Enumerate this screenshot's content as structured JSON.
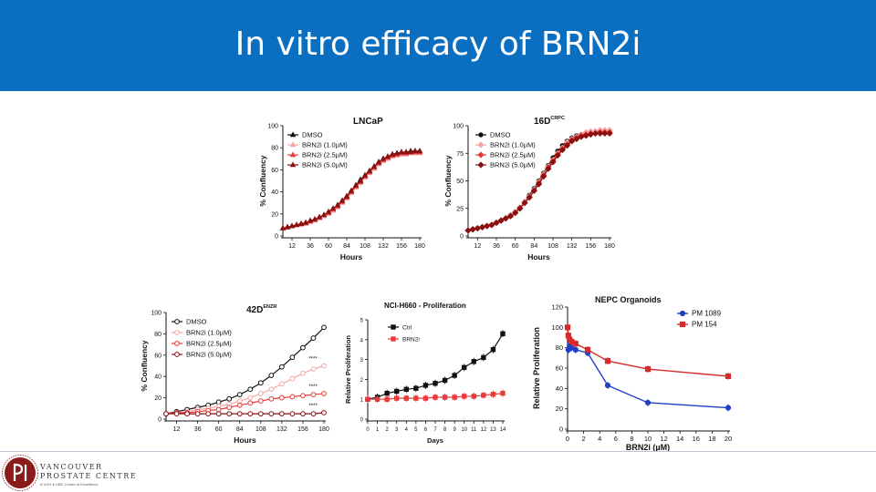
{
  "slide": {
    "title": "In vitro efficacy of BRN2i"
  },
  "logo": {
    "line1": "VANCOUVER",
    "line2": "PROSTATE CENTRE",
    "line3": "A VGH & UBC Centre of Excellence"
  },
  "chart_data": [
    {
      "id": "lncap",
      "type": "line",
      "title": "LNCaP",
      "title_sup": "",
      "xlabel": "Hours",
      "ylabel": "% Confluency",
      "xlim": [
        0,
        180
      ],
      "ylim": [
        0,
        100
      ],
      "xticks": [
        12,
        36,
        60,
        84,
        108,
        132,
        156,
        180
      ],
      "yticks": [
        0,
        20,
        40,
        60,
        80,
        100
      ],
      "legend_position": "top-left",
      "x": [
        0,
        6,
        12,
        18,
        24,
        30,
        36,
        42,
        48,
        54,
        60,
        66,
        72,
        78,
        84,
        90,
        96,
        102,
        108,
        114,
        120,
        126,
        132,
        138,
        144,
        150,
        156,
        162,
        168,
        174,
        180
      ],
      "series": [
        {
          "name": "DMSO",
          "color": "#111111",
          "marker": "triangle-up",
          "fill": true,
          "values": [
            7,
            8,
            9,
            10,
            11,
            12,
            13,
            15,
            17,
            19,
            21,
            24,
            28,
            32,
            36,
            41,
            46,
            51,
            55,
            59,
            63,
            67,
            70,
            72,
            74,
            75,
            76,
            76,
            77,
            77,
            77
          ]
        },
        {
          "name": "BRN2i (1.0µM)",
          "color": "#f2a7a7",
          "marker": "triangle-up",
          "fill": true,
          "values": [
            7,
            8,
            9,
            10,
            10,
            11,
            13,
            14,
            16,
            18,
            20,
            23,
            26,
            30,
            34,
            39,
            44,
            48,
            53,
            57,
            61,
            65,
            68,
            70,
            72,
            73,
            74,
            74,
            75,
            75,
            75
          ]
        },
        {
          "name": "BRN2i (2.5µM)",
          "color": "#e83a3a",
          "marker": "triangle-up",
          "fill": true,
          "values": [
            7,
            8,
            9,
            10,
            11,
            12,
            13,
            15,
            17,
            19,
            21,
            24,
            27,
            31,
            35,
            40,
            45,
            49,
            54,
            58,
            62,
            66,
            69,
            71,
            73,
            74,
            75,
            75,
            76,
            76,
            76
          ]
        },
        {
          "name": "BRN2i (5.0µM)",
          "color": "#8b1010",
          "marker": "triangle-up",
          "fill": true,
          "values": [
            7,
            8,
            9,
            10,
            11,
            12,
            14,
            15,
            17,
            19,
            22,
            25,
            28,
            32,
            36,
            41,
            46,
            50,
            55,
            59,
            63,
            67,
            70,
            72,
            74,
            75,
            76,
            76,
            76,
            77,
            77
          ]
        }
      ]
    },
    {
      "id": "16d",
      "type": "line",
      "title": "16D",
      "title_sup": "CRPC",
      "xlabel": "Hours",
      "ylabel": "% Confluency",
      "xlim": [
        0,
        180
      ],
      "ylim": [
        0,
        100
      ],
      "xticks": [
        12,
        36,
        60,
        84,
        108,
        132,
        156,
        180
      ],
      "yticks": [
        0,
        25,
        50,
        75,
        100
      ],
      "legend_position": "top-left",
      "x": [
        0,
        6,
        12,
        18,
        24,
        30,
        36,
        42,
        48,
        54,
        60,
        66,
        72,
        78,
        84,
        90,
        96,
        102,
        108,
        114,
        120,
        126,
        132,
        138,
        144,
        150,
        156,
        162,
        168,
        174,
        180
      ],
      "series": [
        {
          "name": "DMSO",
          "color": "#111111",
          "marker": "circle",
          "fill": true,
          "values": [
            5,
            6,
            7,
            8,
            9,
            10,
            12,
            14,
            16,
            19,
            22,
            26,
            31,
            37,
            43,
            50,
            57,
            64,
            71,
            77,
            82,
            86,
            89,
            91,
            92,
            93,
            93,
            94,
            94,
            94,
            94
          ]
        },
        {
          "name": "BRN2i (1.0µM)",
          "color": "#f2a7a7",
          "marker": "diamond",
          "fill": true,
          "values": [
            5,
            6,
            7,
            8,
            9,
            10,
            12,
            14,
            16,
            19,
            22,
            26,
            31,
            36,
            42,
            49,
            56,
            63,
            69,
            75,
            80,
            85,
            88,
            90,
            92,
            94,
            95,
            95,
            96,
            96,
            96
          ]
        },
        {
          "name": "BRN2i (2.5µM)",
          "color": "#e83a3a",
          "marker": "diamond",
          "fill": true,
          "values": [
            5,
            6,
            7,
            8,
            9,
            10,
            12,
            14,
            16,
            18,
            21,
            25,
            30,
            35,
            41,
            48,
            55,
            62,
            68,
            74,
            79,
            83,
            87,
            89,
            91,
            92,
            93,
            93,
            94,
            94,
            94
          ]
        },
        {
          "name": "BRN2i (5.0µM)",
          "color": "#8b1010",
          "marker": "diamond",
          "fill": true,
          "values": [
            5,
            6,
            7,
            8,
            9,
            10,
            12,
            14,
            16,
            18,
            21,
            25,
            30,
            35,
            41,
            47,
            54,
            61,
            67,
            73,
            78,
            82,
            86,
            88,
            90,
            91,
            92,
            93,
            93,
            93,
            93
          ]
        }
      ]
    },
    {
      "id": "42d",
      "type": "line",
      "title": "42D",
      "title_sup": "ENZR",
      "xlabel": "Hours",
      "ylabel": "% Confluency",
      "xlim": [
        0,
        180
      ],
      "ylim": [
        0,
        100
      ],
      "xticks": [
        12,
        36,
        60,
        84,
        108,
        132,
        156,
        180
      ],
      "yticks": [
        0,
        20,
        40,
        60,
        80,
        100
      ],
      "legend_position": "top-left",
      "annotations": [
        "****",
        "****",
        "****"
      ],
      "x": [
        0,
        12,
        24,
        36,
        48,
        60,
        72,
        84,
        96,
        108,
        120,
        132,
        144,
        156,
        168,
        180
      ],
      "series": [
        {
          "name": "DMSO",
          "color": "#111111",
          "marker": "circle",
          "fill": false,
          "values": [
            5,
            7,
            9,
            11,
            13,
            16,
            19,
            23,
            28,
            34,
            41,
            49,
            58,
            67,
            76,
            86
          ]
        },
        {
          "name": "BRN2i (1.0µM)",
          "color": "#f2a7a7",
          "marker": "circle",
          "fill": false,
          "values": [
            5,
            6,
            7,
            9,
            10,
            12,
            14,
            17,
            20,
            24,
            28,
            33,
            38,
            43,
            47,
            50
          ]
        },
        {
          "name": "BRN2i (2.5µM)",
          "color": "#e83a3a",
          "marker": "circle",
          "fill": false,
          "values": [
            5,
            6,
            6,
            7,
            8,
            9,
            11,
            13,
            15,
            17,
            19,
            20,
            21,
            22,
            23,
            24
          ]
        },
        {
          "name": "BRN2i (5.0µM)",
          "color": "#8b1010",
          "marker": "circle",
          "fill": false,
          "values": [
            5,
            5,
            5,
            5,
            5,
            5,
            5,
            5,
            5,
            5,
            5,
            5,
            5,
            5,
            5,
            6
          ]
        }
      ]
    },
    {
      "id": "nci",
      "type": "line",
      "title": "NCI-H660 - Proliferation",
      "title_sup": "",
      "xlabel": "Days",
      "ylabel": "Relative Proliferation",
      "xlim": [
        0,
        14
      ],
      "ylim": [
        0,
        5
      ],
      "xticks": [
        0,
        1,
        2,
        3,
        4,
        5,
        6,
        7,
        8,
        9,
        10,
        11,
        12,
        13,
        14
      ],
      "yticks": [
        0,
        1,
        2,
        3,
        4,
        5
      ],
      "legend_position": "top-left",
      "x": [
        0,
        1,
        2,
        3,
        4,
        5,
        6,
        7,
        8,
        9,
        10,
        11,
        12,
        13,
        14
      ],
      "series": [
        {
          "name": "Ctrl",
          "color": "#111111",
          "marker": "square",
          "fill": true,
          "values": [
            1.0,
            1.1,
            1.3,
            1.4,
            1.5,
            1.55,
            1.7,
            1.8,
            1.95,
            2.2,
            2.6,
            2.9,
            3.1,
            3.5,
            4.3
          ]
        },
        {
          "name": "BRN2i",
          "color": "#e83a3a",
          "marker": "square",
          "fill": true,
          "values": [
            1.0,
            1.0,
            1.0,
            1.05,
            1.05,
            1.05,
            1.05,
            1.1,
            1.1,
            1.1,
            1.15,
            1.15,
            1.2,
            1.25,
            1.3
          ]
        }
      ]
    },
    {
      "id": "nepc",
      "type": "line",
      "title": "NEPC Organoids",
      "title_sup": "",
      "xlabel": "BRN2i (µM)",
      "ylabel": "Relative Proliferation",
      "xlim": [
        0,
        20
      ],
      "ylim": [
        0,
        120
      ],
      "xticks": [
        0,
        2,
        4,
        6,
        8,
        10,
        12,
        14,
        16,
        18,
        20
      ],
      "yticks": [
        0,
        20,
        40,
        60,
        80,
        100,
        120
      ],
      "legend_position": "top-right",
      "x": [
        0,
        0.1,
        0.25,
        0.5,
        1,
        2.5,
        5,
        10,
        20
      ],
      "series": [
        {
          "name": "PM 1089",
          "color": "#1f3fc8",
          "marker": "circle",
          "fill": true,
          "values": [
            100,
            78,
            82,
            80,
            78,
            75,
            43,
            26,
            21
          ]
        },
        {
          "name": "PM 154",
          "color": "#d42a2a",
          "marker": "square",
          "fill": true,
          "values": [
            100,
            92,
            88,
            86,
            84,
            78,
            67,
            59,
            52
          ]
        }
      ]
    }
  ]
}
